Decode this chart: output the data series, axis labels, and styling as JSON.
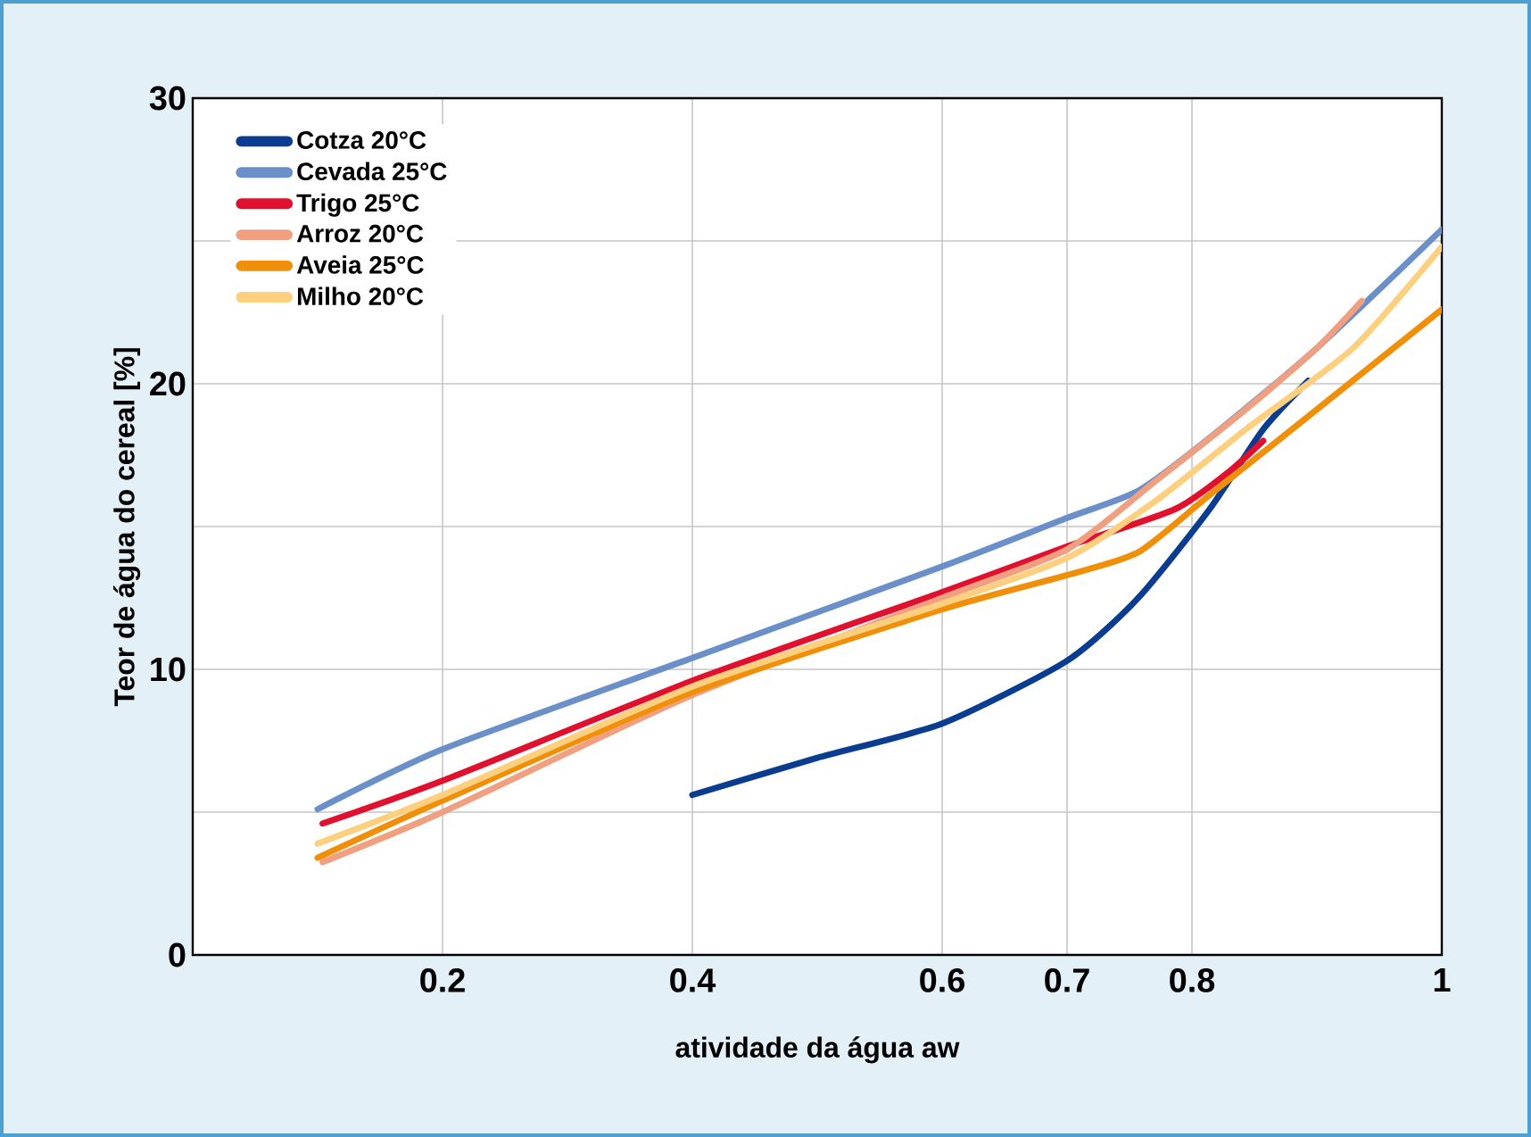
{
  "chart_data": {
    "type": "line",
    "xlabel": "atividade da água aw",
    "ylabel": "Teor de água do cereal [%]",
    "xlim": [
      0,
      1
    ],
    "ylim": [
      0,
      30
    ],
    "xticks": [
      0.2,
      0.4,
      0.6,
      0.7,
      0.8,
      1
    ],
    "yticks": [
      0,
      {
        "value": 5,
        "label": null
      },
      10,
      {
        "value": 15,
        "label": null
      },
      20,
      {
        "value": 25,
        "label": null
      },
      30
    ],
    "grid": true,
    "legend": "top left",
    "line_style": "solid",
    "marker": "none",
    "series": [
      {
        "name": "Cotza 20°C",
        "color": "#0a3d8f",
        "x": [
          0.4,
          0.5,
          0.6,
          0.7,
          0.757,
          0.814,
          0.857,
          0.893
        ],
        "values": [
          5.6,
          6.9,
          8.1,
          10.3,
          12.5,
          15.6,
          18.4,
          20.1
        ]
      },
      {
        "name": "Cevada 25°C",
        "color": "#6b8fc8",
        "x": [
          0.1,
          0.2,
          0.4,
          0.6,
          0.7,
          0.757,
          0.814,
          0.9,
          1
        ],
        "values": [
          5.1,
          7.2,
          10.4,
          13.6,
          15.3,
          16.25,
          18.1,
          21.25,
          25.4
        ]
      },
      {
        "name": "Trigo 25°C",
        "color": "#e0102f",
        "x": [
          0.104,
          0.2,
          0.4,
          0.6,
          0.7,
          0.786,
          0.829,
          0.857
        ],
        "values": [
          4.6,
          6.1,
          9.6,
          12.7,
          14.3,
          15.6,
          16.9,
          18.0
        ]
      },
      {
        "name": "Arroz 20°C",
        "color": "#f0a080",
        "x": [
          0.104,
          0.2,
          0.4,
          0.6,
          0.7,
          0.771,
          0.843,
          0.9,
          0.936
        ],
        "values": [
          3.25,
          5.0,
          9.1,
          12.5,
          14.2,
          16.6,
          19.1,
          21.25,
          22.9
        ]
      },
      {
        "name": "Aveia 25°C",
        "color": "#f0900a",
        "x": [
          0.1,
          0.2,
          0.4,
          0.6,
          0.7,
          0.757,
          0.814,
          0.9,
          1
        ],
        "values": [
          3.4,
          5.4,
          9.2,
          12.1,
          13.3,
          14.1,
          16.1,
          19.1,
          22.6
        ]
      },
      {
        "name": "Milho 20°C",
        "color": "#fdd080",
        "x": [
          0.1,
          0.2,
          0.4,
          0.6,
          0.7,
          0.771,
          0.843,
          0.929,
          1
        ],
        "values": [
          3.9,
          5.6,
          9.4,
          12.3,
          13.9,
          15.9,
          18.4,
          21.25,
          24.8
        ]
      }
    ]
  }
}
